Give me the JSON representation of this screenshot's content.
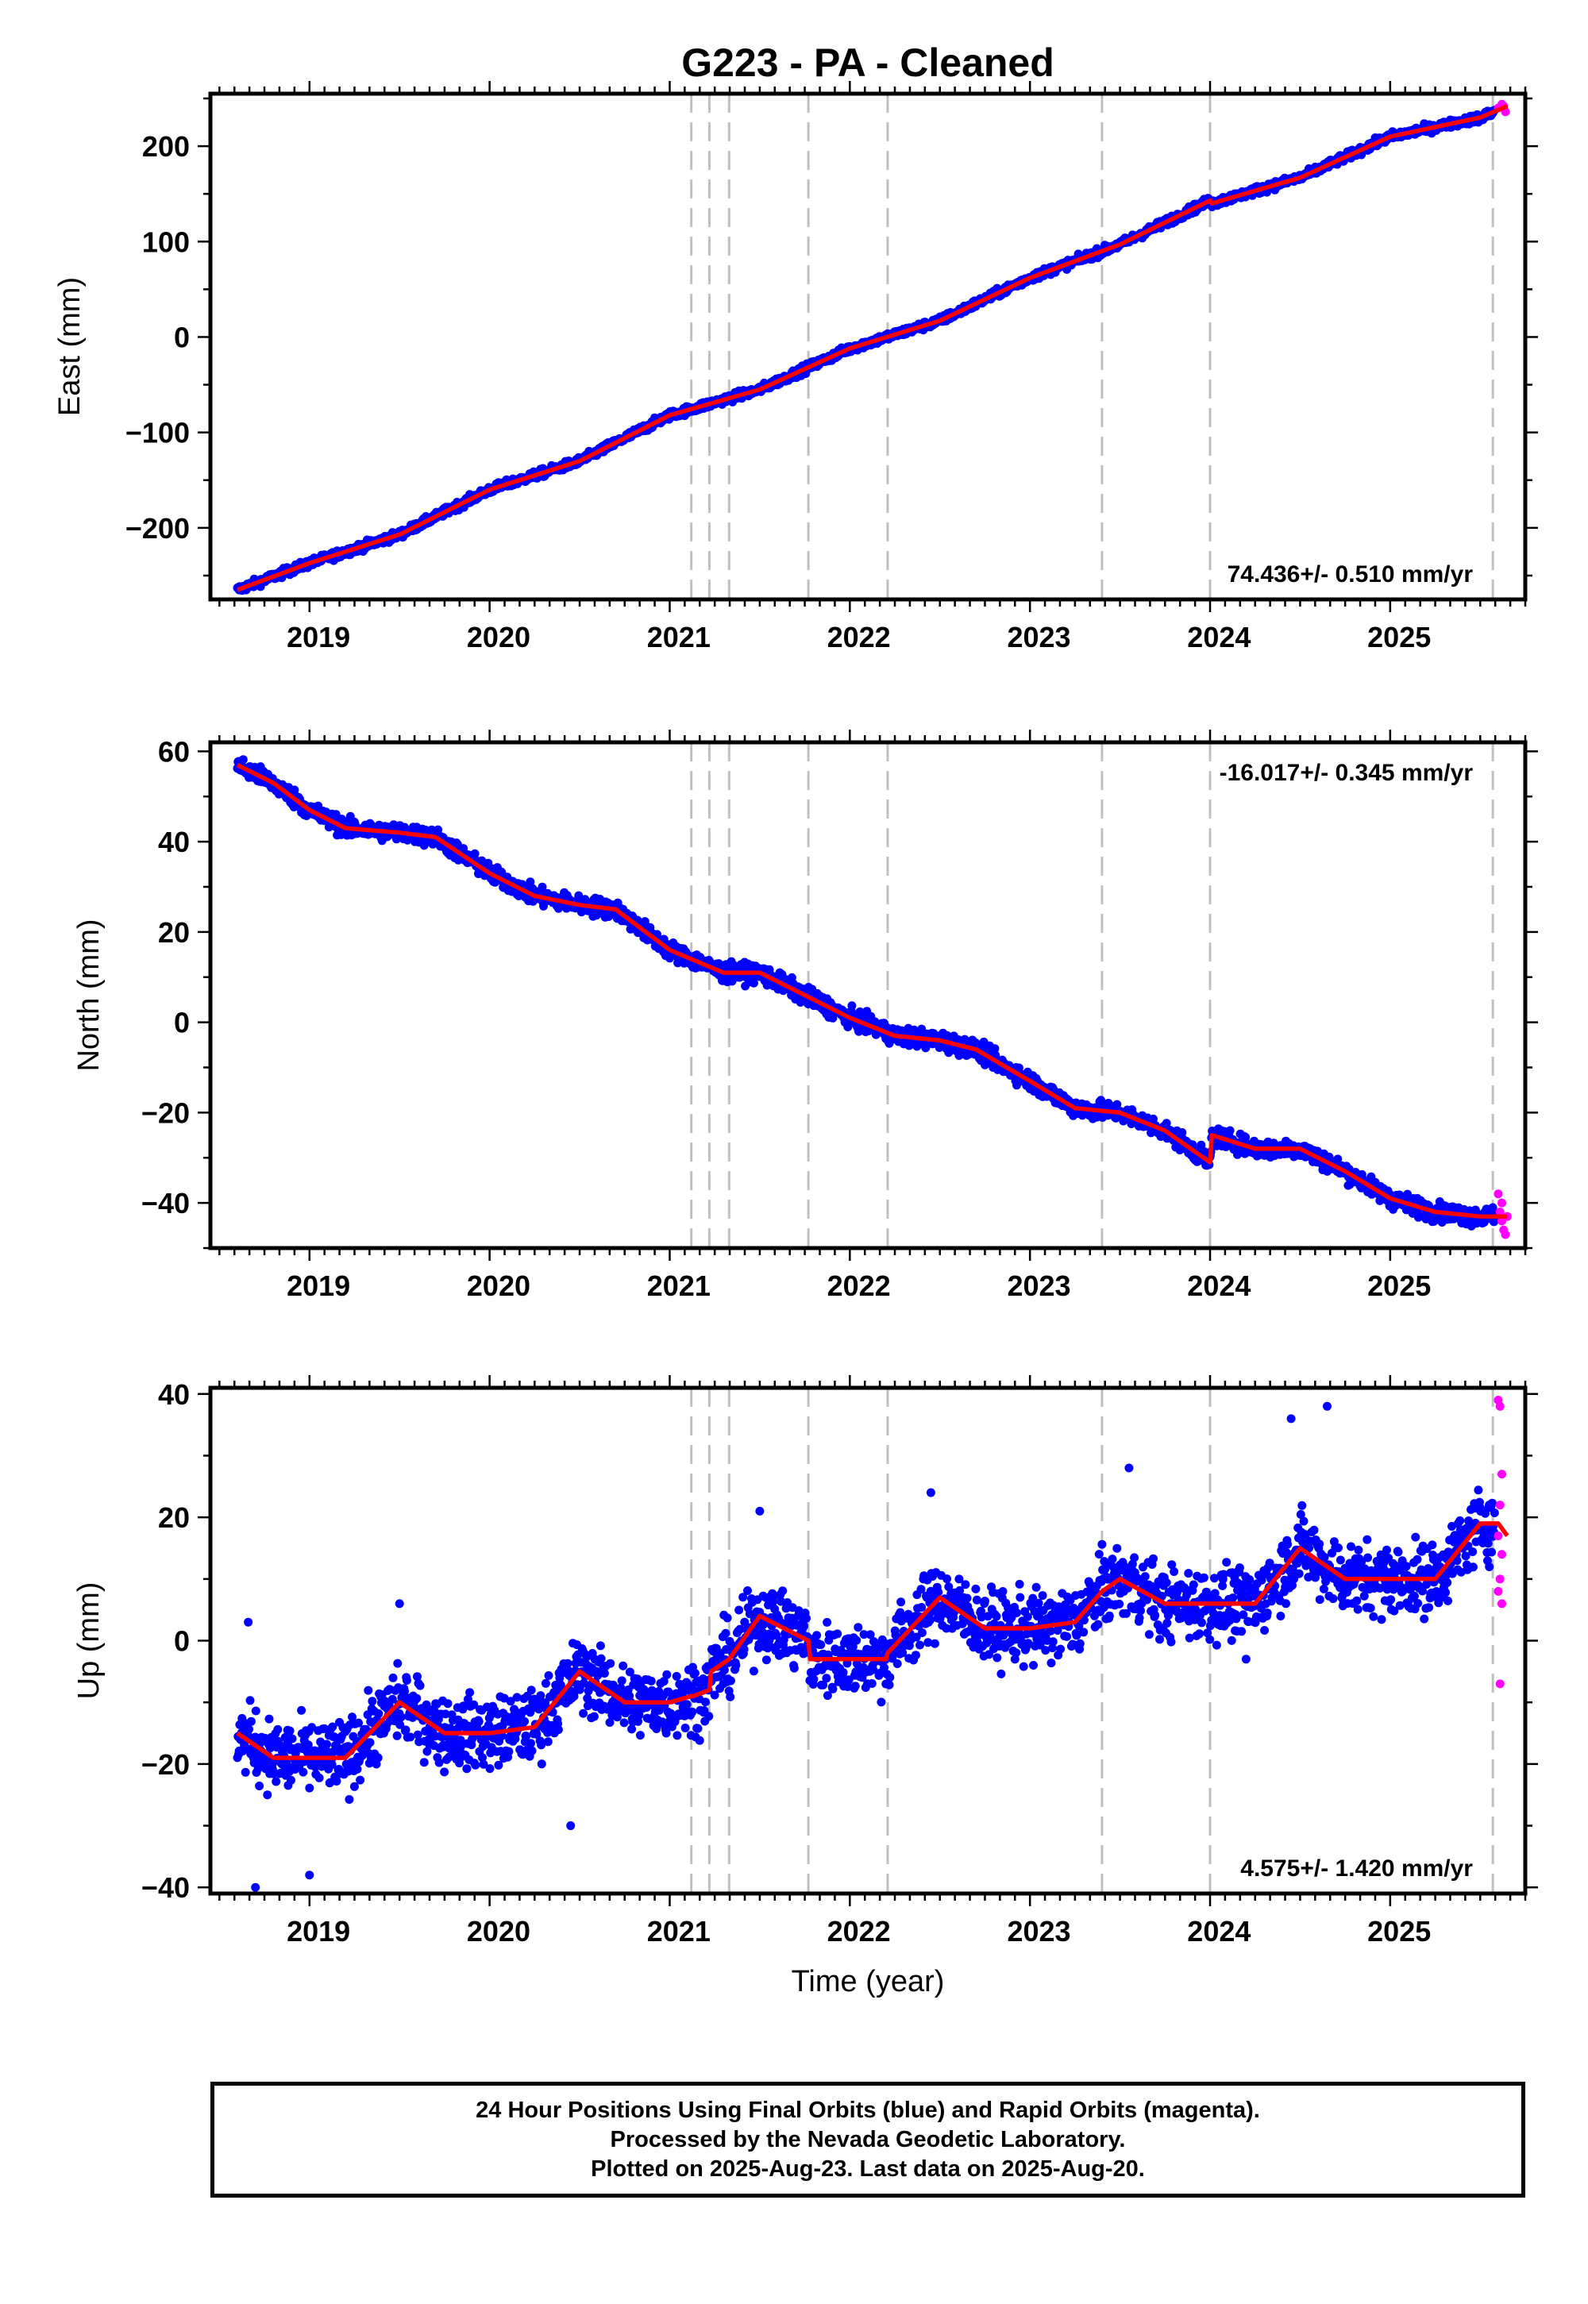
{
  "title": "G223  - PA - Cleaned",
  "x_axis_label": "Time (year)",
  "footer": {
    "lines": [
      "24 Hour Positions Using Final Orbits (blue) and Rapid Orbits (magenta).",
      "Processed by the Nevada Geodetic Laboratory.",
      "Plotted on 2025-Aug-23. Last data on 2025-Aug-20."
    ]
  },
  "colors": {
    "final_orbits": "#0000ff",
    "rapid_orbits": "#ff00ff",
    "fit": "#ff0000",
    "step_lines": "#c0c0c0",
    "axis": "#000000"
  },
  "chart_data": [
    {
      "type": "scatter",
      "ylabel": "East (mm)",
      "xlim": [
        2018.45,
        2025.75
      ],
      "ylim": [
        -275,
        255
      ],
      "xticks": [
        2019,
        2020,
        2021,
        2022,
        2023,
        2024,
        2025
      ],
      "yticks": [
        -200,
        -100,
        0,
        100,
        200
      ],
      "velocity_label": "74.436+/- 0.510 mm/yr",
      "velocity_label_position": "bottom-right",
      "step_lines": [
        2021.12,
        2021.22,
        2021.33,
        2021.77,
        2022.21,
        2023.4,
        2024.0,
        2025.57
      ],
      "fit": [
        [
          2018.6,
          -265
        ],
        [
          2019.0,
          -237
        ],
        [
          2019.5,
          -207
        ],
        [
          2020.0,
          -160
        ],
        [
          2020.5,
          -130
        ],
        [
          2021.0,
          -82
        ],
        [
          2021.5,
          -55
        ],
        [
          2022.0,
          -12
        ],
        [
          2022.5,
          17
        ],
        [
          2023.0,
          62
        ],
        [
          2023.5,
          97
        ],
        [
          2024.0,
          143
        ],
        [
          2024.01,
          140
        ],
        [
          2024.5,
          167
        ],
        [
          2025.0,
          210
        ],
        [
          2025.5,
          230
        ],
        [
          2025.65,
          242
        ]
      ],
      "noise": 3,
      "jumps": [
        {
          "at": 2024.0,
          "size": -6
        }
      ],
      "rapid_points": [
        [
          2025.6,
          240
        ],
        [
          2025.62,
          244
        ],
        [
          2025.64,
          236
        ],
        [
          2025.63,
          242
        ]
      ]
    },
    {
      "type": "scatter",
      "ylabel": "North (mm)",
      "xlim": [
        2018.45,
        2025.75
      ],
      "ylim": [
        -50,
        62
      ],
      "xticks": [
        2019,
        2020,
        2021,
        2022,
        2023,
        2024,
        2025
      ],
      "yticks": [
        -40,
        -20,
        0,
        20,
        40,
        60
      ],
      "velocity_label": "-16.017+/- 0.345 mm/yr",
      "velocity_label_position": "top-right",
      "step_lines": [
        2021.12,
        2021.22,
        2021.33,
        2021.77,
        2022.21,
        2023.4,
        2024.0,
        2025.57
      ],
      "fit": [
        [
          2018.6,
          57
        ],
        [
          2018.8,
          53
        ],
        [
          2019.0,
          47
        ],
        [
          2019.2,
          43
        ],
        [
          2019.5,
          42
        ],
        [
          2019.7,
          41
        ],
        [
          2020.0,
          33
        ],
        [
          2020.25,
          28
        ],
        [
          2020.5,
          26
        ],
        [
          2020.7,
          25
        ],
        [
          2021.0,
          16
        ],
        [
          2021.3,
          11
        ],
        [
          2021.5,
          11
        ],
        [
          2021.75,
          6
        ],
        [
          2022.0,
          1
        ],
        [
          2022.25,
          -3
        ],
        [
          2022.5,
          -4
        ],
        [
          2022.7,
          -6
        ],
        [
          2023.0,
          -13
        ],
        [
          2023.25,
          -19
        ],
        [
          2023.5,
          -20
        ],
        [
          2023.75,
          -24
        ],
        [
          2024.0,
          -31
        ],
        [
          2024.01,
          -25
        ],
        [
          2024.25,
          -28
        ],
        [
          2024.5,
          -28
        ],
        [
          2024.75,
          -33
        ],
        [
          2025.0,
          -39
        ],
        [
          2025.25,
          -42
        ],
        [
          2025.5,
          -43
        ],
        [
          2025.65,
          -43
        ]
      ],
      "noise": 1.4,
      "rapid_points": [
        [
          2025.6,
          -38
        ],
        [
          2025.61,
          -42
        ],
        [
          2025.62,
          -44
        ],
        [
          2025.63,
          -46
        ],
        [
          2025.64,
          -47
        ],
        [
          2025.65,
          -43
        ],
        [
          2025.62,
          -40
        ]
      ]
    },
    {
      "type": "scatter",
      "ylabel": "Up (mm)",
      "xlim": [
        2018.45,
        2025.75
      ],
      "ylim": [
        -41,
        41
      ],
      "xticks": [
        2019,
        2020,
        2021,
        2022,
        2023,
        2024,
        2025
      ],
      "yticks": [
        -40,
        -20,
        0,
        20,
        40
      ],
      "velocity_label": "4.575+/- 1.420 mm/yr",
      "velocity_label_position": "bottom-right",
      "step_lines": [
        2021.12,
        2021.22,
        2021.33,
        2021.77,
        2022.21,
        2023.4,
        2024.0,
        2025.57
      ],
      "fit": [
        [
          2018.6,
          -15
        ],
        [
          2018.8,
          -19
        ],
        [
          2019.0,
          -19
        ],
        [
          2019.2,
          -19
        ],
        [
          2019.5,
          -10
        ],
        [
          2019.75,
          -15
        ],
        [
          2020.0,
          -15
        ],
        [
          2020.25,
          -14
        ],
        [
          2020.5,
          -5
        ],
        [
          2020.75,
          -10
        ],
        [
          2021.0,
          -10
        ],
        [
          2021.12,
          -9
        ],
        [
          2021.13,
          -9
        ],
        [
          2021.22,
          -8
        ],
        [
          2021.23,
          -5
        ],
        [
          2021.33,
          -3
        ],
        [
          2021.5,
          4
        ],
        [
          2021.77,
          0
        ],
        [
          2021.78,
          -3
        ],
        [
          2022.0,
          -3
        ],
        [
          2022.2,
          -3
        ],
        [
          2022.21,
          -2
        ],
        [
          2022.5,
          7
        ],
        [
          2022.75,
          2
        ],
        [
          2023.0,
          2
        ],
        [
          2023.25,
          3
        ],
        [
          2023.4,
          8
        ],
        [
          2023.5,
          10
        ],
        [
          2023.75,
          6
        ],
        [
          2024.0,
          6
        ],
        [
          2024.25,
          6
        ],
        [
          2024.5,
          15
        ],
        [
          2024.75,
          10
        ],
        [
          2025.0,
          10
        ],
        [
          2025.25,
          10
        ],
        [
          2025.5,
          19
        ],
        [
          2025.6,
          19
        ],
        [
          2025.65,
          17
        ]
      ],
      "noise": 4,
      "rapid_points": [
        [
          2025.6,
          39
        ],
        [
          2025.61,
          38
        ],
        [
          2025.62,
          27
        ],
        [
          2025.61,
          22
        ],
        [
          2025.6,
          17
        ],
        [
          2025.62,
          14
        ],
        [
          2025.61,
          10
        ],
        [
          2025.6,
          8
        ],
        [
          2025.62,
          6
        ],
        [
          2025.61,
          -7
        ]
      ],
      "outliers": [
        [
          2018.7,
          -40
        ],
        [
          2018.66,
          3
        ],
        [
          2019.0,
          -38
        ],
        [
          2020.45,
          -30
        ],
        [
          2021.5,
          21
        ],
        [
          2022.45,
          24
        ],
        [
          2023.55,
          28
        ],
        [
          2024.45,
          36
        ],
        [
          2024.65,
          38
        ],
        [
          2025.55,
          22
        ],
        [
          2024.2,
          -3
        ],
        [
          2019.5,
          6
        ]
      ]
    }
  ]
}
